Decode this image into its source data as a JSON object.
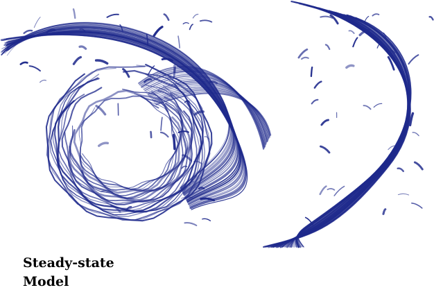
{
  "caption": {
    "line1": "Steady-state",
    "line2": "Model"
  },
  "artwork": {
    "name": "blue-swirl-illustration",
    "ink_color": "#1f2a8c"
  }
}
